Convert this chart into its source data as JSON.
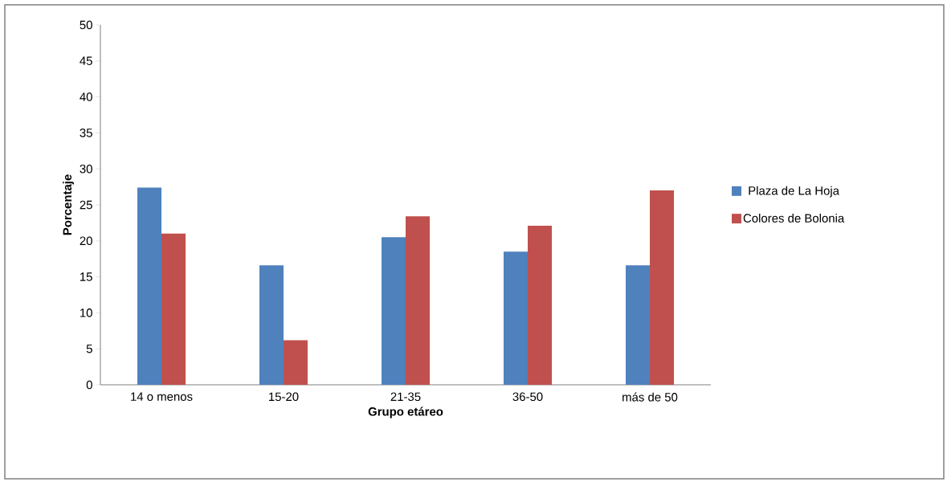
{
  "chart_data": {
    "type": "bar",
    "xlabel": "Grupo etáreo",
    "ylabel": "Porcentaje",
    "categories": [
      "14 o menos",
      "15-20",
      "21-35",
      "36-50",
      "más de 50"
    ],
    "series": [
      {
        "name": "Plaza de La Hoja",
        "color": "#4f81bd",
        "values": [
          27.4,
          16.6,
          20.5,
          18.5,
          16.6
        ]
      },
      {
        "name": "Colores de Bolonia",
        "color": "#c0504d",
        "values": [
          21.0,
          6.2,
          23.4,
          22.1,
          27.0
        ]
      }
    ],
    "ylim": [
      0,
      50
    ],
    "yticks": [
      0,
      5,
      10,
      15,
      20,
      25,
      30,
      35,
      40,
      45,
      50
    ],
    "grid": false,
    "legend": "right"
  }
}
